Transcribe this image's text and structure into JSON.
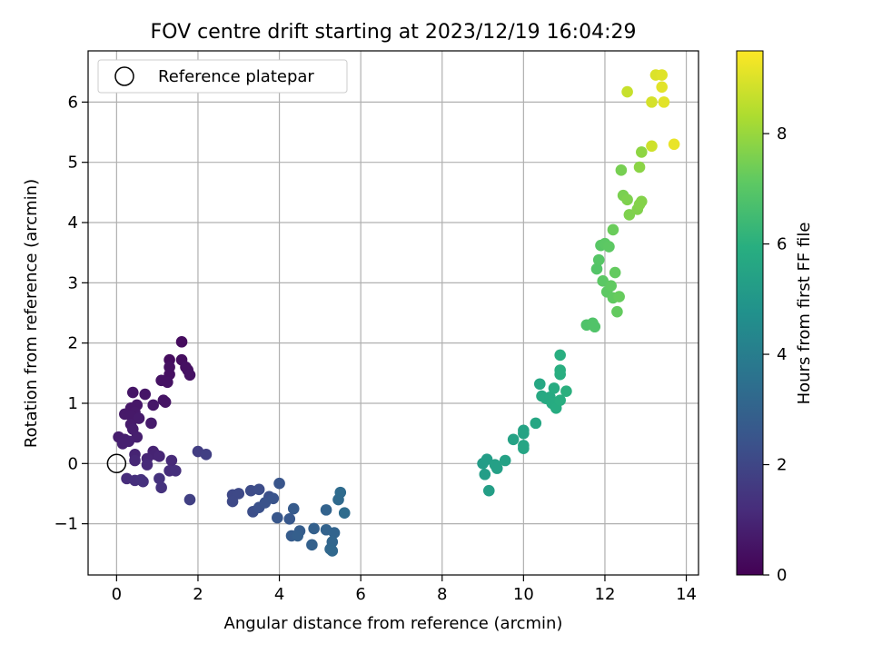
{
  "chart_data": {
    "type": "scatter",
    "title": "FOV centre drift starting at 2023/12/19 16:04:29",
    "xlabel": "Angular distance from reference (arcmin)",
    "ylabel": "Rotation from reference (arcmin)",
    "xlim": [
      -0.7,
      14.3
    ],
    "ylim": [
      -1.85,
      6.85
    ],
    "xticks": [
      0,
      2,
      4,
      6,
      8,
      10,
      12,
      14
    ],
    "yticks": [
      -1,
      0,
      1,
      2,
      3,
      4,
      5,
      6
    ],
    "xtick_labels": [
      "0",
      "2",
      "4",
      "6",
      "8",
      "10",
      "12",
      "14"
    ],
    "ytick_labels": [
      "−1",
      "0",
      "1",
      "2",
      "3",
      "4",
      "5",
      "6"
    ],
    "grid": true,
    "legend": {
      "position": "top-left",
      "entries": [
        "Reference platepar"
      ]
    },
    "reference_point": {
      "x": 0,
      "y": 0
    },
    "colorbar": {
      "label": "Hours from first FF file",
      "range": [
        0,
        9.5
      ],
      "ticks": [
        0,
        2,
        4,
        6,
        8
      ],
      "tick_labels": [
        "0",
        "2",
        "4",
        "6",
        "8"
      ],
      "colormap": "viridis"
    },
    "points": [
      [
        1.6,
        2.02,
        0.3
      ],
      [
        1.3,
        1.72,
        0.3
      ],
      [
        1.6,
        1.72,
        0.35
      ],
      [
        1.7,
        1.6,
        0.4
      ],
      [
        1.75,
        1.55,
        0.4
      ],
      [
        1.8,
        1.47,
        0.45
      ],
      [
        1.3,
        1.6,
        0.4
      ],
      [
        1.3,
        1.48,
        0.4
      ],
      [
        1.1,
        1.38,
        0.45
      ],
      [
        1.25,
        1.35,
        0.45
      ],
      [
        1.15,
        1.05,
        0.5
      ],
      [
        1.2,
        1.02,
        0.5
      ],
      [
        0.4,
        1.18,
        0.55
      ],
      [
        0.7,
        1.15,
        0.55
      ],
      [
        0.5,
        0.97,
        0.6
      ],
      [
        0.9,
        0.97,
        0.6
      ],
      [
        0.35,
        0.92,
        0.6
      ],
      [
        0.45,
        0.85,
        0.65
      ],
      [
        0.2,
        0.82,
        0.65
      ],
      [
        0.35,
        0.8,
        0.65
      ],
      [
        0.55,
        0.75,
        0.7
      ],
      [
        0.35,
        0.65,
        0.7
      ],
      [
        0.85,
        0.67,
        0.7
      ],
      [
        0.4,
        0.57,
        0.75
      ],
      [
        0.05,
        0.44,
        0.75
      ],
      [
        0.5,
        0.44,
        0.8
      ],
      [
        0.2,
        0.4,
        0.8
      ],
      [
        0.3,
        0.37,
        0.85
      ],
      [
        0.15,
        0.33,
        0.85
      ],
      [
        0.9,
        0.2,
        0.9
      ],
      [
        0.45,
        0.15,
        0.95
      ],
      [
        0.95,
        0.15,
        0.95
      ],
      [
        1.05,
        0.12,
        1.0
      ],
      [
        0.75,
        0.08,
        1.0
      ],
      [
        0.45,
        0.05,
        1.05
      ],
      [
        1.35,
        0.05,
        1.1
      ],
      [
        0.75,
        -0.02,
        1.1
      ],
      [
        1.3,
        -0.12,
        1.2
      ],
      [
        1.45,
        -0.12,
        1.25
      ],
      [
        0.25,
        -0.25,
        1.2
      ],
      [
        0.45,
        -0.28,
        1.25
      ],
      [
        0.6,
        -0.27,
        1.3
      ],
      [
        0.65,
        -0.3,
        1.3
      ],
      [
        1.05,
        -0.25,
        1.35
      ],
      [
        1.1,
        -0.4,
        1.35
      ],
      [
        2.0,
        0.2,
        1.7
      ],
      [
        2.2,
        0.15,
        1.75
      ],
      [
        1.8,
        -0.6,
        1.8
      ],
      [
        2.85,
        -0.52,
        2.05
      ],
      [
        3.0,
        -0.5,
        2.1
      ],
      [
        2.85,
        -0.63,
        2.1
      ],
      [
        3.3,
        -0.45,
        2.15
      ],
      [
        3.5,
        -0.43,
        2.2
      ],
      [
        3.35,
        -0.8,
        2.25
      ],
      [
        3.75,
        -0.55,
        2.3
      ],
      [
        3.5,
        -0.73,
        2.35
      ],
      [
        3.65,
        -0.65,
        2.4
      ],
      [
        3.85,
        -0.58,
        2.45
      ],
      [
        4.0,
        -0.33,
        2.5
      ],
      [
        3.95,
        -0.9,
        2.55
      ],
      [
        4.25,
        -0.92,
        2.6
      ],
      [
        4.35,
        -0.75,
        2.7
      ],
      [
        4.3,
        -1.2,
        2.75
      ],
      [
        4.5,
        -1.12,
        2.8
      ],
      [
        4.45,
        -1.2,
        2.85
      ],
      [
        4.85,
        -1.08,
        2.9
      ],
      [
        4.8,
        -1.35,
        2.95
      ],
      [
        5.15,
        -1.1,
        3.0
      ],
      [
        5.15,
        -0.77,
        3.0
      ],
      [
        5.35,
        -1.15,
        3.05
      ],
      [
        5.3,
        -1.3,
        3.1
      ],
      [
        5.25,
        -1.42,
        3.15
      ],
      [
        5.3,
        -1.45,
        3.2
      ],
      [
        5.45,
        -0.6,
        3.25
      ],
      [
        5.5,
        -0.48,
        3.3
      ],
      [
        5.6,
        -0.82,
        3.35
      ],
      [
        9.0,
        0.0,
        5.2
      ],
      [
        9.1,
        0.07,
        5.25
      ],
      [
        9.05,
        -0.18,
        5.25
      ],
      [
        9.15,
        -0.45,
        5.3
      ],
      [
        9.3,
        -0.02,
        5.35
      ],
      [
        9.35,
        -0.08,
        5.35
      ],
      [
        9.55,
        0.05,
        5.4
      ],
      [
        9.75,
        0.4,
        5.45
      ],
      [
        10.0,
        0.5,
        5.5
      ],
      [
        10.0,
        0.55,
        5.5
      ],
      [
        10.0,
        0.3,
        5.55
      ],
      [
        10.0,
        0.25,
        5.55
      ],
      [
        10.3,
        0.67,
        5.6
      ],
      [
        10.4,
        1.32,
        5.65
      ],
      [
        10.45,
        1.12,
        5.7
      ],
      [
        10.55,
        1.08,
        5.75
      ],
      [
        10.65,
        1.1,
        5.75
      ],
      [
        10.7,
        1.0,
        5.8
      ],
      [
        10.75,
        1.25,
        5.8
      ],
      [
        10.8,
        0.92,
        5.85
      ],
      [
        10.9,
        1.05,
        5.9
      ],
      [
        10.9,
        1.48,
        5.9
      ],
      [
        10.9,
        1.55,
        5.95
      ],
      [
        10.9,
        1.8,
        5.95
      ],
      [
        11.05,
        1.2,
        6.0
      ],
      [
        11.55,
        2.3,
        6.8
      ],
      [
        11.7,
        2.33,
        6.85
      ],
      [
        11.75,
        2.27,
        6.85
      ],
      [
        11.8,
        3.23,
        6.9
      ],
      [
        11.85,
        3.38,
        6.95
      ],
      [
        11.9,
        3.62,
        7.0
      ],
      [
        11.95,
        3.03,
        7.05
      ],
      [
        12.0,
        3.65,
        7.05
      ],
      [
        12.05,
        2.85,
        7.1
      ],
      [
        12.1,
        3.6,
        7.1
      ],
      [
        12.15,
        2.95,
        7.15
      ],
      [
        12.2,
        2.75,
        7.15
      ],
      [
        12.25,
        3.17,
        7.2
      ],
      [
        12.3,
        2.52,
        7.2
      ],
      [
        12.35,
        2.77,
        7.25
      ],
      [
        12.2,
        3.88,
        7.3
      ],
      [
        12.4,
        4.87,
        7.5
      ],
      [
        12.45,
        4.45,
        7.55
      ],
      [
        12.55,
        4.38,
        7.6
      ],
      [
        12.6,
        4.13,
        7.6
      ],
      [
        12.8,
        4.22,
        7.65
      ],
      [
        12.85,
        4.3,
        7.7
      ],
      [
        12.9,
        4.35,
        7.7
      ],
      [
        12.85,
        4.92,
        7.8
      ],
      [
        12.9,
        5.17,
        7.85
      ],
      [
        12.55,
        6.17,
        8.7
      ],
      [
        13.15,
        5.27,
        8.8
      ],
      [
        13.15,
        6.0,
        8.9
      ],
      [
        13.25,
        6.45,
        9.0
      ],
      [
        13.4,
        6.45,
        9.05
      ],
      [
        13.4,
        6.25,
        9.1
      ],
      [
        13.45,
        6.0,
        9.1
      ],
      [
        13.7,
        5.3,
        9.2
      ]
    ]
  }
}
